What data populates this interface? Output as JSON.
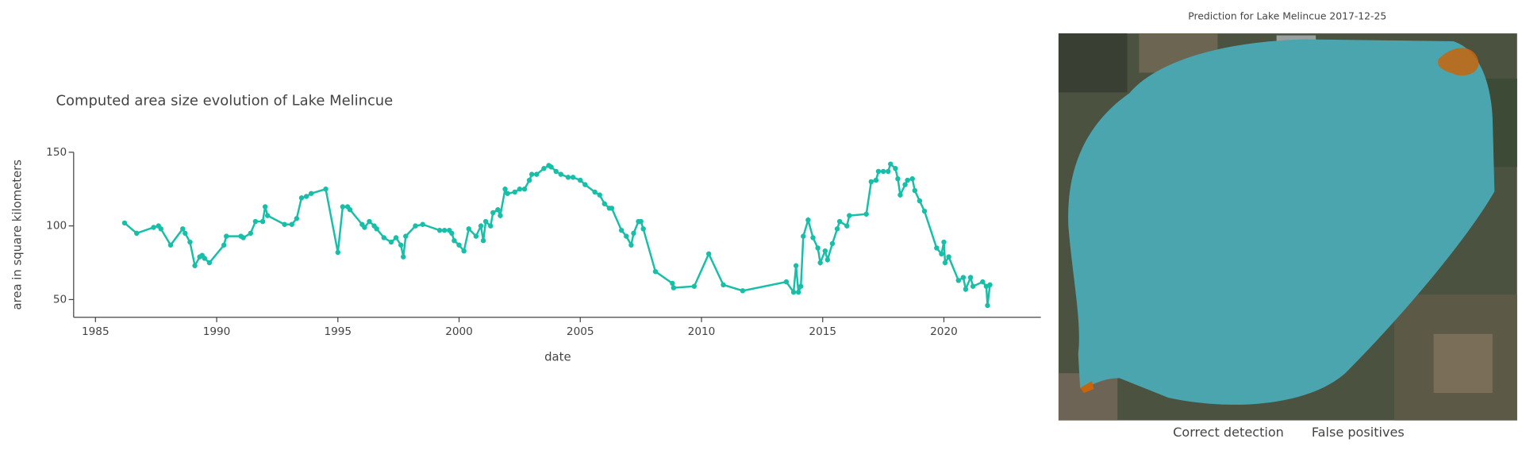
{
  "chart_data": {
    "type": "line",
    "title": "Computed area size evolution of Lake Melincue",
    "x_label": "date",
    "y_label": "area in square kilometers",
    "color": "#17bfa8",
    "xlim": [
      1984.1,
      2024
    ],
    "xticks": [
      1985,
      1990,
      1995,
      2000,
      2005,
      2010,
      2015,
      2020
    ],
    "ylim": [
      38,
      150
    ],
    "yticks": [
      50,
      100,
      150
    ],
    "x": [
      1986.2,
      1986.7,
      1987.4,
      1987.6,
      1987.7,
      1988.1,
      1988.6,
      1988.7,
      1988.9,
      1989.1,
      1989.3,
      1989.4,
      1989.5,
      1989.7,
      1990.3,
      1990.4,
      1991.0,
      1991.1,
      1991.4,
      1991.6,
      1991.9,
      1992.0,
      1992.1,
      1992.8,
      1993.1,
      1993.3,
      1993.5,
      1993.7,
      1993.9,
      1994.5,
      1995.0,
      1995.2,
      1995.4,
      1995.5,
      1996.0,
      1996.1,
      1996.3,
      1996.5,
      1996.6,
      1996.9,
      1997.2,
      1997.4,
      1997.6,
      1997.7,
      1997.8,
      1998.2,
      1998.5,
      1999.2,
      1999.4,
      1999.6,
      1999.7,
      1999.8,
      2000.0,
      2000.2,
      2000.4,
      2000.7,
      2000.9,
      2001.0,
      2001.1,
      2001.3,
      2001.4,
      2001.6,
      2001.7,
      2001.9,
      2002.0,
      2002.3,
      2002.5,
      2002.7,
      2002.9,
      2003.0,
      2003.2,
      2003.5,
      2003.7,
      2003.8,
      2004.0,
      2004.2,
      2004.5,
      2004.7,
      2005.0,
      2005.2,
      2005.6,
      2005.8,
      2006.0,
      2006.2,
      2006.3,
      2006.7,
      2006.9,
      2007.1,
      2007.2,
      2007.4,
      2007.5,
      2007.6,
      2008.1,
      2008.8,
      2008.85,
      2009.7,
      2010.3,
      2010.9,
      2011.7,
      2013.5,
      2013.8,
      2013.9,
      2014.0,
      2014.1,
      2014.2,
      2014.4,
      2014.6,
      2014.8,
      2014.9,
      2015.1,
      2015.2,
      2015.4,
      2015.6,
      2015.7,
      2016.0,
      2016.1,
      2016.8,
      2017.0,
      2017.2,
      2017.3,
      2017.5,
      2017.7,
      2017.8,
      2018.0,
      2018.1,
      2018.2,
      2018.4,
      2018.5,
      2018.7,
      2018.8,
      2019.0,
      2019.2,
      2019.7,
      2019.9,
      2020.0,
      2020.05,
      2020.2,
      2020.6,
      2020.8,
      2020.9,
      2021.1,
      2021.2,
      2021.6,
      2021.75,
      2021.8,
      2021.9
    ],
    "values": [
      102,
      95,
      99,
      100,
      98,
      87,
      98,
      95,
      89,
      73,
      79,
      80,
      78,
      75,
      87,
      93,
      93,
      92,
      95,
      103,
      103,
      113,
      107,
      101,
      101,
      105,
      119,
      120,
      122,
      125,
      82,
      113,
      113,
      111,
      101,
      99,
      103,
      100,
      98,
      92,
      89,
      92,
      87,
      79,
      93,
      100,
      101,
      97,
      97,
      97,
      95,
      90,
      87,
      83,
      98,
      93,
      100,
      90,
      103,
      100,
      109,
      111,
      107,
      125,
      122,
      123,
      125,
      125,
      131,
      135,
      135,
      139,
      141,
      140,
      137,
      135,
      133,
      133,
      131,
      128,
      123,
      121,
      115,
      112,
      112,
      97,
      93,
      87,
      95,
      103,
      103,
      98,
      69,
      61,
      58,
      59,
      81,
      60,
      56,
      62,
      55,
      73,
      55,
      59,
      93,
      104,
      92,
      85,
      75,
      83,
      77,
      88,
      98,
      103,
      100,
      107,
      108,
      130,
      131,
      137,
      137,
      137,
      142,
      139,
      132,
      121,
      128,
      131,
      132,
      124,
      117,
      110,
      85,
      81,
      89,
      75,
      79,
      63,
      65,
      57,
      65,
      59,
      62,
      59,
      46,
      60
    ]
  },
  "image_panel": {
    "title": "Prediction for Lake Melincue 2017-12-25",
    "legend": [
      {
        "label": "Correct detection",
        "color": "#2a7f7c"
      },
      {
        "label": "False positives",
        "color": "#c8650c"
      }
    ]
  }
}
